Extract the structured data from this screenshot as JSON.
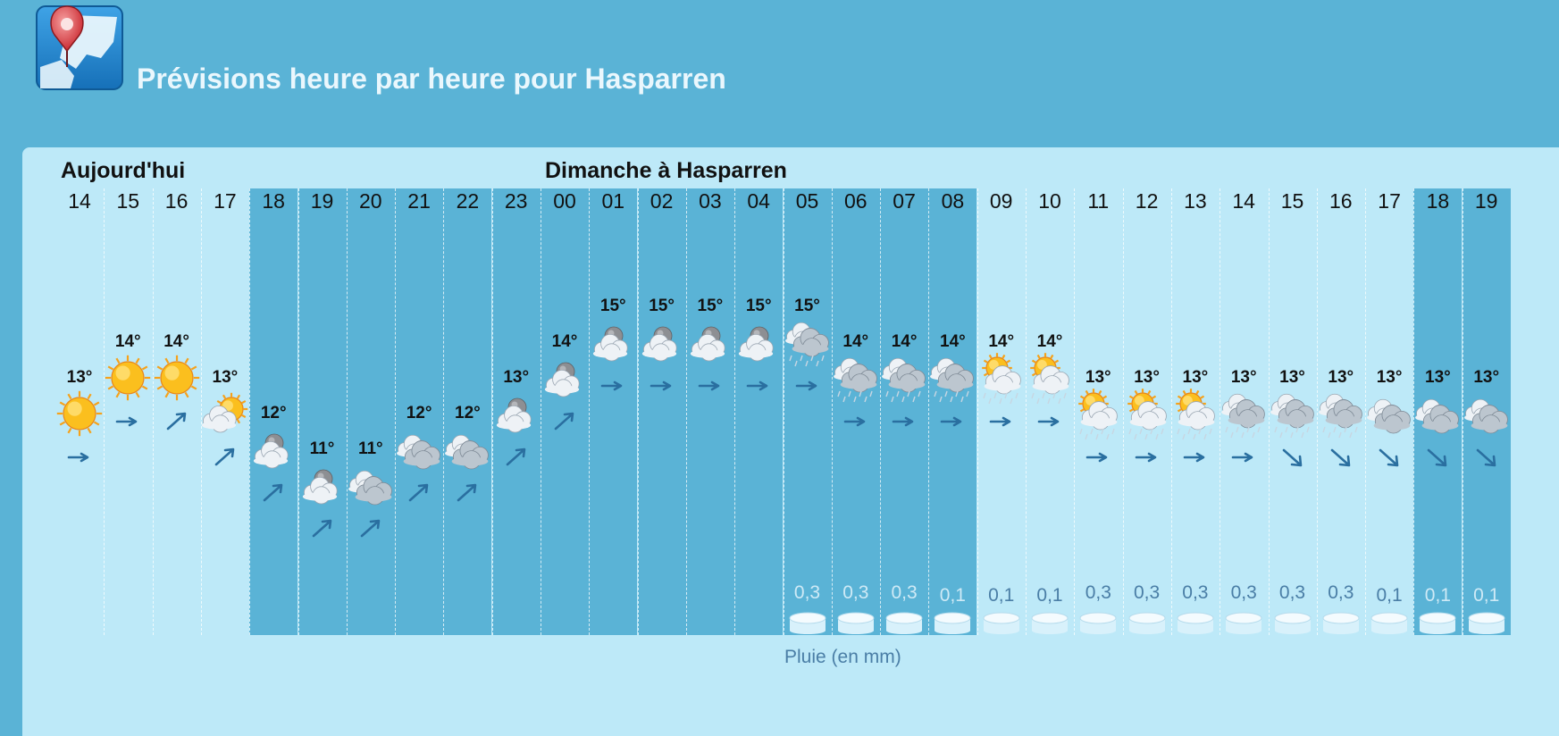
{
  "header": {
    "title": "Prévisions heure par heure pour Hasparren",
    "logo_icon": "map-pin-icon"
  },
  "forecast": {
    "day_labels": [
      "Aujourd'hui",
      "Dimanche à Hasparren"
    ],
    "rain_caption": "Pluie (en mm)",
    "hours": [
      {
        "hour": "14",
        "temp": "13°",
        "icon": "sun-icon",
        "wind": "east",
        "rain": "",
        "night": false
      },
      {
        "hour": "15",
        "temp": "14°",
        "icon": "sun-icon",
        "wind": "east",
        "rain": "",
        "night": false
      },
      {
        "hour": "16",
        "temp": "14°",
        "icon": "sun-icon",
        "wind": "northeast",
        "rain": "",
        "night": false
      },
      {
        "hour": "17",
        "temp": "13°",
        "icon": "sun-cloud-icon",
        "wind": "northeast",
        "rain": "",
        "night": false
      },
      {
        "hour": "18",
        "temp": "12°",
        "icon": "moon-cloud-icon",
        "wind": "northeast",
        "rain": "",
        "night": true
      },
      {
        "hour": "19",
        "temp": "11°",
        "icon": "moon-cloud-icon",
        "wind": "northeast",
        "rain": "",
        "night": true
      },
      {
        "hour": "20",
        "temp": "11°",
        "icon": "cloud-icon",
        "wind": "northeast",
        "rain": "",
        "night": true
      },
      {
        "hour": "21",
        "temp": "12°",
        "icon": "cloud-icon",
        "wind": "northeast",
        "rain": "",
        "night": true
      },
      {
        "hour": "22",
        "temp": "12°",
        "icon": "cloud-icon",
        "wind": "northeast",
        "rain": "",
        "night": true
      },
      {
        "hour": "23",
        "temp": "13°",
        "icon": "moon-cloud-icon",
        "wind": "northeast",
        "rain": "",
        "night": true
      },
      {
        "hour": "00",
        "temp": "14°",
        "icon": "moon-cloud-icon",
        "wind": "northeast",
        "rain": "",
        "night": true
      },
      {
        "hour": "01",
        "temp": "15°",
        "icon": "moon-cloud-icon",
        "wind": "east",
        "rain": "",
        "night": true
      },
      {
        "hour": "02",
        "temp": "15°",
        "icon": "moon-cloud-icon",
        "wind": "east",
        "rain": "",
        "night": true
      },
      {
        "hour": "03",
        "temp": "15°",
        "icon": "moon-cloud-icon",
        "wind": "east",
        "rain": "",
        "night": true
      },
      {
        "hour": "04",
        "temp": "15°",
        "icon": "moon-cloud-icon",
        "wind": "east",
        "rain": "",
        "night": true
      },
      {
        "hour": "05",
        "temp": "15°",
        "icon": "rain-cloud-icon",
        "wind": "east",
        "rain": "0,3",
        "night": true
      },
      {
        "hour": "06",
        "temp": "14°",
        "icon": "rain-cloud-icon",
        "wind": "east",
        "rain": "0,3",
        "night": true
      },
      {
        "hour": "07",
        "temp": "14°",
        "icon": "rain-cloud-icon",
        "wind": "east",
        "rain": "0,3",
        "night": true
      },
      {
        "hour": "08",
        "temp": "14°",
        "icon": "rain-cloud-icon",
        "wind": "east",
        "rain": "0,1",
        "night": true
      },
      {
        "hour": "09",
        "temp": "14°",
        "icon": "sun-rain-cloud-icon",
        "wind": "east",
        "rain": "0,1",
        "night": false
      },
      {
        "hour": "10",
        "temp": "14°",
        "icon": "sun-rain-cloud-icon",
        "wind": "east",
        "rain": "0,1",
        "night": false
      },
      {
        "hour": "11",
        "temp": "13°",
        "icon": "sun-rain-cloud-icon",
        "wind": "east",
        "rain": "0,3",
        "night": false
      },
      {
        "hour": "12",
        "temp": "13°",
        "icon": "sun-rain-cloud-icon",
        "wind": "east",
        "rain": "0,3",
        "night": false
      },
      {
        "hour": "13",
        "temp": "13°",
        "icon": "sun-rain-cloud-icon",
        "wind": "east",
        "rain": "0,3",
        "night": false
      },
      {
        "hour": "14",
        "temp": "13°",
        "icon": "rain-cloud-icon",
        "wind": "east",
        "rain": "0,3",
        "night": false
      },
      {
        "hour": "15",
        "temp": "13°",
        "icon": "rain-cloud-icon",
        "wind": "southeast",
        "rain": "0,3",
        "night": false
      },
      {
        "hour": "16",
        "temp": "13°",
        "icon": "rain-cloud-icon",
        "wind": "southeast",
        "rain": "0,3",
        "night": false
      },
      {
        "hour": "17",
        "temp": "13°",
        "icon": "cloud-icon",
        "wind": "southeast",
        "rain": "0,1",
        "night": false
      },
      {
        "hour": "18",
        "temp": "13°",
        "icon": "cloud-icon",
        "wind": "southeast",
        "rain": "0,1",
        "night": true
      },
      {
        "hour": "19",
        "temp": "13°",
        "icon": "cloud-icon",
        "wind": "southeast",
        "rain": "0,1",
        "night": true
      }
    ]
  }
}
